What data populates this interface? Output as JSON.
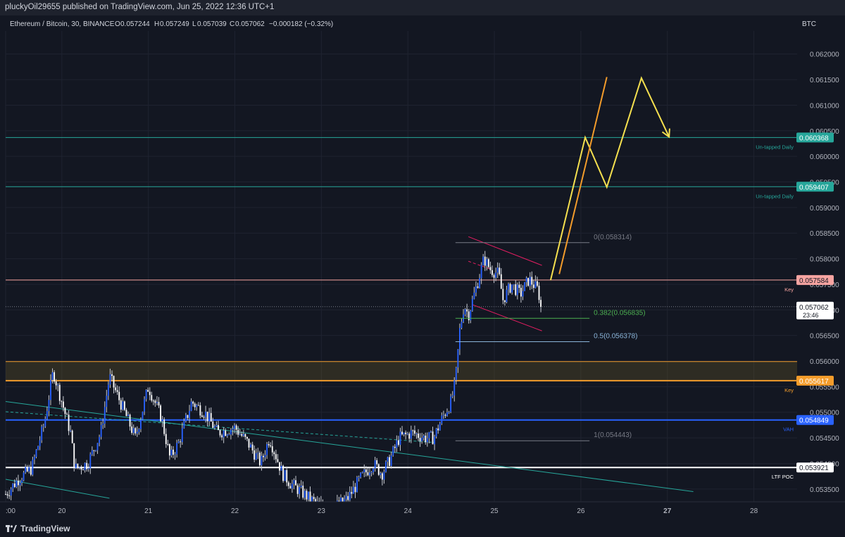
{
  "header": {
    "publish_line": "pluckyOil29655 published on TradingView.com, Jun 25, 2022 12:36 UTC+1",
    "symbol": "Ethereum / Bitcoin, 30, BINANCE",
    "ohlc": {
      "o_label": "O",
      "o": "0.057244",
      "h_label": "H",
      "h": "0.057249",
      "l_label": "L",
      "l": "0.057039",
      "c_label": "C",
      "c": "0.057062",
      "change": "−0.000182 (−0.32%)"
    },
    "currency": "BTC"
  },
  "footer": {
    "brand": "TradingView"
  },
  "colors": {
    "background": "#131722",
    "grid": "#1f2330",
    "candle": "#2962ff",
    "wick": "#c8cbd3",
    "teal": "#26a69a",
    "pink": "#e91e63",
    "salmon": "#f7a4a1",
    "orange": "#f39c2b",
    "blue": "#2962ff",
    "white": "#ffffff",
    "yellow": "#f5e04f",
    "fib_green": "#4caf50",
    "fib_light": "#8ab4d8",
    "fib_grey": "#787b86"
  },
  "chart_data": {
    "type": "candlestick",
    "title": "Ethereum / Bitcoin, 30, BINANCE",
    "x_axis": {
      "unit": "day (June 2022)",
      "range": [
        19.35,
        28.5
      ],
      "ticks": [
        {
          "label": ":00",
          "day": 19.35
        },
        {
          "label": "20",
          "day": 20
        },
        {
          "label": "21",
          "day": 21
        },
        {
          "label": "22",
          "day": 22
        },
        {
          "label": "23",
          "day": 23
        },
        {
          "label": "24",
          "day": 24
        },
        {
          "label": "25",
          "day": 25
        },
        {
          "label": "26",
          "day": 26
        },
        {
          "label": "27",
          "day": 27
        },
        {
          "label": "28",
          "day": 28
        }
      ]
    },
    "y_axis": {
      "unit": "BTC",
      "range": [
        0.05325,
        0.06245
      ],
      "ticks": [
        "0.062000",
        "0.061500",
        "0.061000",
        "0.060500",
        "0.060000",
        "0.059500",
        "0.059000",
        "0.058500",
        "0.058000",
        "0.057500",
        "0.057000",
        "0.056500",
        "0.056000",
        "0.055500",
        "0.055000",
        "0.054500",
        "0.054000",
        "0.053500"
      ]
    },
    "price_path": [
      [
        19.35,
        0.0534
      ],
      [
        19.5,
        0.0537
      ],
      [
        19.65,
        0.0539
      ],
      [
        19.8,
        0.0548
      ],
      [
        19.9,
        0.0558
      ],
      [
        20.0,
        0.0552
      ],
      [
        20.1,
        0.0546
      ],
      [
        20.15,
        0.0539
      ],
      [
        20.3,
        0.054
      ],
      [
        20.45,
        0.0546
      ],
      [
        20.55,
        0.0557
      ],
      [
        20.7,
        0.0551
      ],
      [
        20.85,
        0.0545
      ],
      [
        21.0,
        0.0555
      ],
      [
        21.15,
        0.0549
      ],
      [
        21.25,
        0.0541
      ],
      [
        21.35,
        0.0544
      ],
      [
        21.5,
        0.0552
      ],
      [
        21.65,
        0.055
      ],
      [
        21.8,
        0.0546
      ],
      [
        22.0,
        0.0547
      ],
      [
        22.15,
        0.0544
      ],
      [
        22.3,
        0.054
      ],
      [
        22.4,
        0.0545
      ],
      [
        22.55,
        0.0538
      ],
      [
        22.65,
        0.0536
      ],
      [
        22.8,
        0.0534
      ],
      [
        22.95,
        0.0532
      ],
      [
        23.1,
        0.0531
      ],
      [
        23.3,
        0.0533
      ],
      [
        23.45,
        0.0537
      ],
      [
        23.6,
        0.054
      ],
      [
        23.7,
        0.0538
      ],
      [
        23.8,
        0.0541
      ],
      [
        23.9,
        0.0545
      ],
      [
        24.05,
        0.0546
      ],
      [
        24.2,
        0.0545
      ],
      [
        24.3,
        0.0545
      ],
      [
        24.4,
        0.0549
      ],
      [
        24.5,
        0.0552
      ],
      [
        24.55,
        0.0556
      ],
      [
        24.6,
        0.0566
      ],
      [
        24.65,
        0.0571
      ],
      [
        24.7,
        0.0569
      ],
      [
        24.8,
        0.0575
      ],
      [
        24.88,
        0.058
      ],
      [
        24.95,
        0.0578
      ],
      [
        25.05,
        0.0577
      ],
      [
        25.1,
        0.0572
      ],
      [
        25.2,
        0.0575
      ],
      [
        25.3,
        0.0573
      ],
      [
        25.4,
        0.0576
      ],
      [
        25.5,
        0.0574
      ],
      [
        25.55,
        0.05706
      ]
    ],
    "horizontal_levels": [
      {
        "price": 0.060368,
        "label": "0.060368",
        "tag": "Un-tapped Daily",
        "color": "teal"
      },
      {
        "price": 0.059407,
        "label": "0.059407",
        "tag": "Un-tapped Daily",
        "color": "teal"
      },
      {
        "price": 0.057584,
        "label": "0.057584",
        "tag": "Key",
        "color": "salmon"
      },
      {
        "price": 0.055617,
        "label": "0.055617",
        "tag": "Key",
        "color": "orange"
      },
      {
        "price": 0.054849,
        "label": "0.054849",
        "tag": "VAH",
        "color": "blue"
      },
      {
        "price": 0.053921,
        "label": "0.053921",
        "tag": "LTF POC",
        "color": "white"
      }
    ],
    "zone": {
      "from": 0.055617,
      "to": 0.05599
    },
    "current_price": {
      "label": "0.057062",
      "countdown": "23:46",
      "price": 0.057062
    },
    "fibonacci": [
      {
        "label": "0(0.058314)",
        "price": 0.058314,
        "color": "fib_grey"
      },
      {
        "label": "0.382(0.056835)",
        "price": 0.056835,
        "color": "fib_green"
      },
      {
        "label": "0.5(0.056378)",
        "price": 0.056378,
        "color": "fib_light"
      },
      {
        "label": "1(0.054443)",
        "price": 0.054443,
        "color": "fib_grey"
      }
    ],
    "fib_span": {
      "from": 24.55,
      "to": 26.1
    },
    "trendlines": [
      {
        "points": [
          [
            19.35,
            0.05521
          ],
          [
            27.3,
            0.05345
          ]
        ],
        "color": "teal"
      },
      {
        "points": [
          [
            19.35,
            0.05369
          ],
          [
            20.55,
            0.05332
          ]
        ],
        "color": "teal"
      },
      {
        "points": [
          [
            19.35,
            0.05501
          ],
          [
            24.3,
            0.05441
          ]
        ],
        "color": "teal",
        "dashed": true
      },
      {
        "points": [
          [
            24.7,
            0.05843
          ],
          [
            25.55,
            0.05787
          ]
        ],
        "color": "pink"
      },
      {
        "points": [
          [
            24.75,
            0.0571
          ],
          [
            25.55,
            0.05659
          ]
        ],
        "color": "pink"
      },
      {
        "points": [
          [
            24.7,
            0.05795
          ],
          [
            24.95,
            0.0578
          ]
        ],
        "color": "pink",
        "dashed": true
      }
    ],
    "projections": [
      {
        "points": [
          [
            25.65,
            0.05758
          ],
          [
            26.05,
            0.06037
          ],
          [
            26.3,
            0.0594
          ],
          [
            26.7,
            0.06153
          ],
          [
            27.02,
            0.06038
          ]
        ],
        "color": "yellow",
        "arrow": true
      },
      {
        "points": [
          [
            25.75,
            0.0577
          ],
          [
            26.3,
            0.06155
          ]
        ],
        "color": "orange"
      }
    ]
  }
}
